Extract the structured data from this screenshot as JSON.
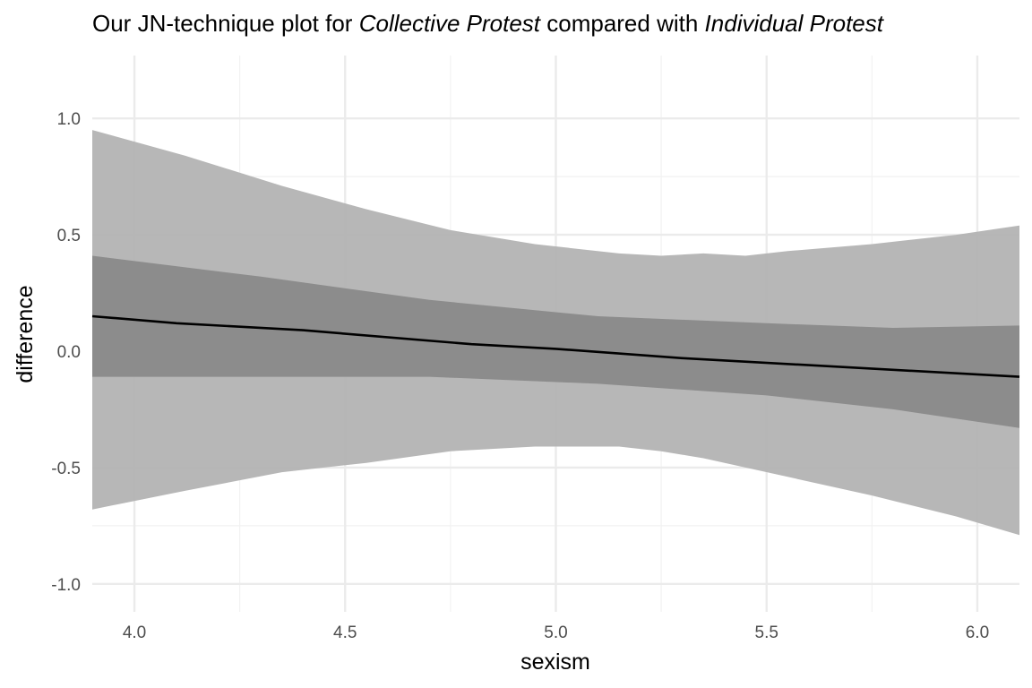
{
  "chart_data": {
    "type": "area",
    "title": {
      "prefix": "Our JN-technique plot for ",
      "group_a": "Collective Protest",
      "middle": " compared with ",
      "group_b": "Individual Protest"
    },
    "xlabel": "sexism",
    "ylabel": "difference",
    "xlim": [
      3.9,
      6.1
    ],
    "ylim": [
      -1.12,
      1.27
    ],
    "x_ticks": [
      4.0,
      4.5,
      5.0,
      5.5,
      6.0
    ],
    "x_tick_labels": [
      "4.0",
      "4.5",
      "5.0",
      "5.5",
      "6.0"
    ],
    "x_minor_ticks": [
      4.25,
      4.75,
      5.25,
      5.75
    ],
    "y_ticks": [
      -1.0,
      -0.5,
      0.0,
      0.5,
      1.0
    ],
    "y_tick_labels": [
      "-1.0",
      "-0.5",
      "0.0",
      "0.5",
      "1.0"
    ],
    "y_minor_ticks": [
      -0.75,
      -0.25,
      0.25,
      0.75
    ],
    "grid": true,
    "legend": "none",
    "colors": {
      "outer_band": "#b3b3b3",
      "inner_band": "#878787",
      "line": "#000000",
      "grid_major": "#ebebeb",
      "grid_minor": "#f2f2f2"
    },
    "series": [
      {
        "role": "outer_band",
        "x": [
          3.9,
          4.12,
          4.35,
          4.55,
          4.75,
          4.95,
          5.15,
          5.25,
          5.35,
          5.45,
          5.55,
          5.75,
          5.95,
          6.1
        ],
        "upper": [
          0.95,
          0.84,
          0.71,
          0.61,
          0.52,
          0.46,
          0.42,
          0.41,
          0.42,
          0.41,
          0.43,
          0.46,
          0.5,
          0.54
        ],
        "lower": [
          -0.68,
          -0.6,
          -0.52,
          -0.48,
          -0.43,
          -0.41,
          -0.41,
          -0.43,
          -0.46,
          -0.5,
          -0.54,
          -0.62,
          -0.71,
          -0.79
        ]
      },
      {
        "role": "inner_band",
        "x": [
          3.9,
          4.3,
          4.7,
          5.1,
          5.5,
          5.8,
          6.1
        ],
        "upper": [
          0.41,
          0.32,
          0.22,
          0.15,
          0.12,
          0.1,
          0.11
        ],
        "lower": [
          -0.11,
          -0.11,
          -0.11,
          -0.14,
          -0.19,
          -0.25,
          -0.33
        ]
      },
      {
        "role": "line",
        "x": [
          3.9,
          4.1,
          4.4,
          4.8,
          5.0,
          5.3,
          5.6,
          6.1
        ],
        "y": [
          0.15,
          0.12,
          0.09,
          0.03,
          0.01,
          -0.03,
          -0.06,
          -0.11
        ]
      }
    ]
  }
}
